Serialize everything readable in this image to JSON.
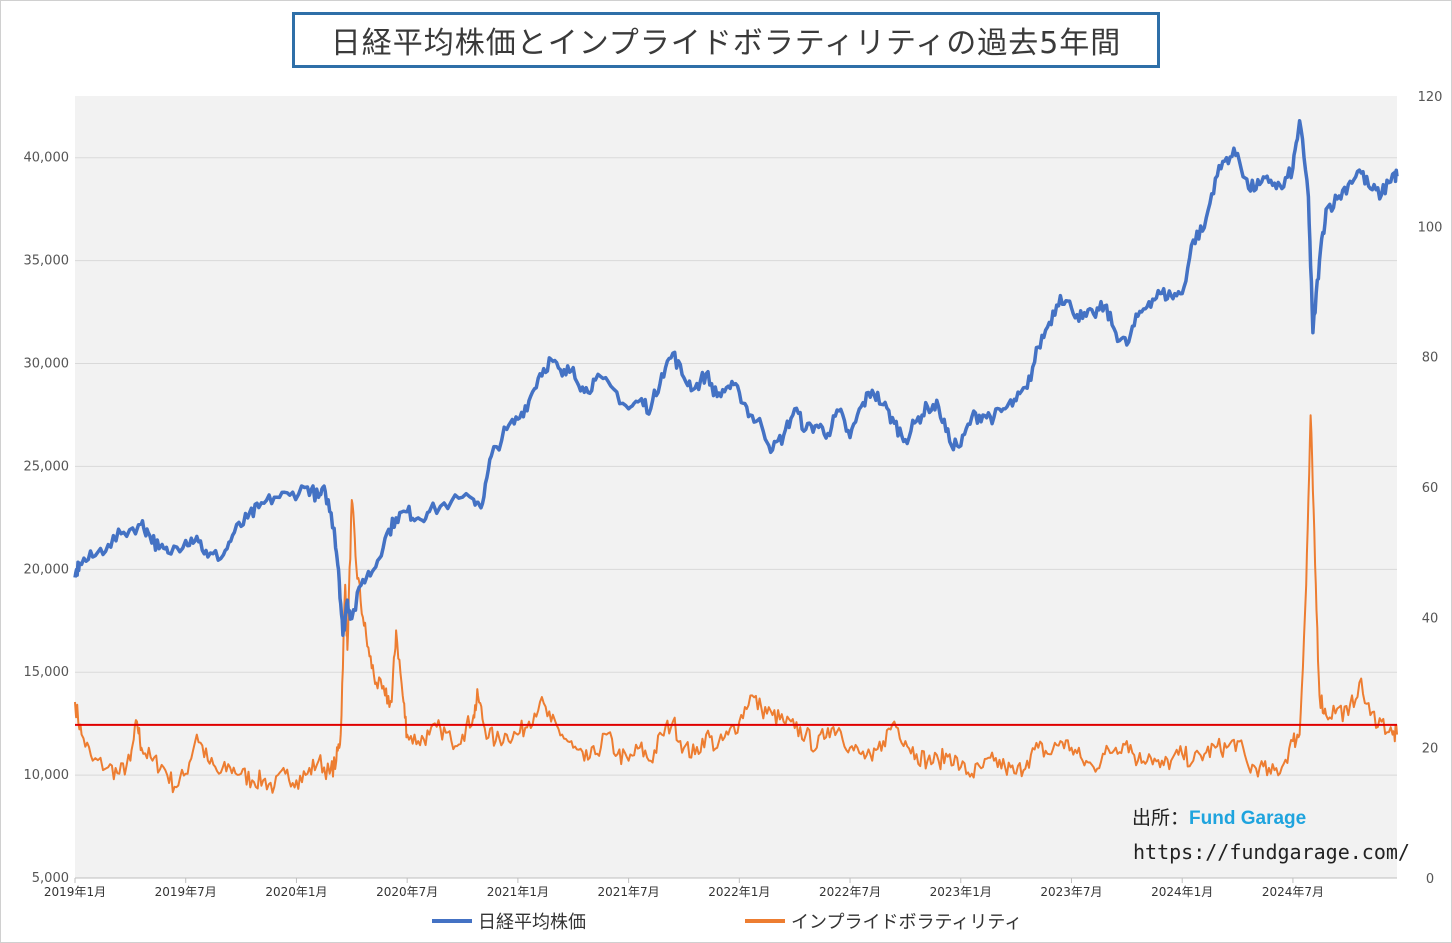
{
  "title": "日経平均株価とインプライドボラティリティの過去5年間",
  "source": {
    "label": "出所：",
    "name": "Fund Garage",
    "url": "https://fundgarage.com/"
  },
  "colors": {
    "nikkei": "#4472c4",
    "iv": "#ed7d31",
    "threshold": "#e00000",
    "plot_bg": "#f2f2f2",
    "grid": "#d9d9d9"
  },
  "chart_data": {
    "type": "line",
    "title": "日経平均株価とインプライドボラティリティの過去5年間",
    "x_tick_labels": [
      "2019年1月",
      "2019年7月",
      "2020年1月",
      "2020年7月",
      "2021年1月",
      "2021年7月",
      "2022年1月",
      "2022年7月",
      "2023年1月",
      "2023年7月",
      "2024年1月",
      "2024年7月"
    ],
    "x_range": [
      2019.0,
      2024.97
    ],
    "y_left": {
      "min": 5000,
      "max": 43000,
      "ticks": [
        "5,000",
        "10,000",
        "15,000",
        "20,000",
        "25,000",
        "30,000",
        "35,000",
        "40,000"
      ]
    },
    "y_right": {
      "min": 0,
      "max": 120,
      "ticks": [
        "0",
        "20",
        "40",
        "60",
        "80",
        "100",
        "120"
      ]
    },
    "threshold_line": {
      "axis": "right",
      "value": 23.5
    },
    "series": [
      {
        "name": "日経平均株価",
        "axis": "left",
        "points": [
          [
            2019.0,
            19600
          ],
          [
            2019.02,
            20300
          ],
          [
            2019.08,
            20600
          ],
          [
            2019.15,
            21200
          ],
          [
            2019.22,
            21800
          ],
          [
            2019.3,
            22200
          ],
          [
            2019.33,
            21800
          ],
          [
            2019.38,
            21000
          ],
          [
            2019.42,
            20800
          ],
          [
            2019.5,
            21400
          ],
          [
            2019.55,
            21600
          ],
          [
            2019.6,
            20600
          ],
          [
            2019.67,
            20700
          ],
          [
            2019.72,
            21800
          ],
          [
            2019.78,
            22500
          ],
          [
            2019.83,
            23000
          ],
          [
            2019.9,
            23500
          ],
          [
            2019.97,
            23600
          ],
          [
            2020.05,
            24000
          ],
          [
            2020.1,
            23500
          ],
          [
            2020.13,
            23800
          ],
          [
            2020.17,
            22000
          ],
          [
            2020.19,
            20000
          ],
          [
            2020.21,
            16800
          ],
          [
            2020.23,
            18500
          ],
          [
            2020.25,
            17600
          ],
          [
            2020.3,
            19500
          ],
          [
            2020.35,
            20000
          ],
          [
            2020.4,
            21500
          ],
          [
            2020.45,
            22500
          ],
          [
            2020.5,
            22800
          ],
          [
            2020.55,
            22500
          ],
          [
            2020.6,
            22800
          ],
          [
            2020.7,
            23300
          ],
          [
            2020.8,
            23400
          ],
          [
            2020.84,
            23200
          ],
          [
            2020.88,
            25500
          ],
          [
            2020.95,
            26800
          ],
          [
            2021.0,
            27300
          ],
          [
            2021.05,
            28200
          ],
          [
            2021.1,
            29500
          ],
          [
            2021.15,
            30200
          ],
          [
            2021.2,
            29400
          ],
          [
            2021.25,
            29800
          ],
          [
            2021.3,
            28600
          ],
          [
            2021.35,
            29200
          ],
          [
            2021.42,
            28900
          ],
          [
            2021.5,
            27800
          ],
          [
            2021.55,
            28200
          ],
          [
            2021.6,
            27800
          ],
          [
            2021.65,
            29500
          ],
          [
            2021.7,
            30500
          ],
          [
            2021.75,
            29300
          ],
          [
            2021.8,
            28800
          ],
          [
            2021.85,
            29500
          ],
          [
            2021.9,
            28400
          ],
          [
            2021.95,
            28900
          ],
          [
            2022.0,
            28600
          ],
          [
            2022.05,
            27500
          ],
          [
            2022.1,
            27000
          ],
          [
            2022.15,
            25800
          ],
          [
            2022.2,
            26500
          ],
          [
            2022.25,
            27800
          ],
          [
            2022.3,
            26800
          ],
          [
            2022.35,
            27000
          ],
          [
            2022.4,
            26600
          ],
          [
            2022.45,
            27700
          ],
          [
            2022.5,
            26400
          ],
          [
            2022.55,
            27900
          ],
          [
            2022.6,
            28700
          ],
          [
            2022.65,
            28000
          ],
          [
            2022.7,
            27100
          ],
          [
            2022.75,
            26300
          ],
          [
            2022.8,
            27200
          ],
          [
            2022.85,
            27900
          ],
          [
            2022.9,
            27900
          ],
          [
            2022.95,
            26200
          ],
          [
            2023.0,
            26000
          ],
          [
            2023.05,
            27400
          ],
          [
            2023.1,
            27500
          ],
          [
            2023.15,
            27400
          ],
          [
            2023.2,
            27800
          ],
          [
            2023.25,
            28200
          ],
          [
            2023.3,
            28800
          ],
          [
            2023.35,
            30800
          ],
          [
            2023.4,
            32000
          ],
          [
            2023.45,
            33300
          ],
          [
            2023.5,
            32700
          ],
          [
            2023.55,
            32200
          ],
          [
            2023.6,
            32400
          ],
          [
            2023.65,
            32800
          ],
          [
            2023.7,
            31500
          ],
          [
            2023.75,
            30900
          ],
          [
            2023.8,
            32300
          ],
          [
            2023.85,
            33000
          ],
          [
            2023.9,
            33400
          ],
          [
            2023.95,
            33300
          ],
          [
            2024.0,
            33400
          ],
          [
            2024.05,
            36000
          ],
          [
            2024.1,
            36600
          ],
          [
            2024.15,
            39000
          ],
          [
            2024.2,
            40000
          ],
          [
            2024.25,
            40200
          ],
          [
            2024.3,
            38500
          ],
          [
            2024.35,
            38700
          ],
          [
            2024.4,
            38900
          ],
          [
            2024.45,
            38500
          ],
          [
            2024.5,
            39500
          ],
          [
            2024.53,
            41800
          ],
          [
            2024.57,
            38100
          ],
          [
            2024.59,
            31500
          ],
          [
            2024.62,
            35000
          ],
          [
            2024.65,
            37500
          ],
          [
            2024.7,
            38000
          ],
          [
            2024.75,
            38700
          ],
          [
            2024.8,
            39400
          ],
          [
            2024.85,
            38500
          ],
          [
            2024.9,
            38200
          ],
          [
            2024.95,
            39200
          ],
          [
            2024.97,
            39100
          ]
        ]
      },
      {
        "name": "インプライドボラティリティ",
        "axis": "right",
        "points": [
          [
            2019.0,
            27
          ],
          [
            2019.03,
            22
          ],
          [
            2019.08,
            18
          ],
          [
            2019.15,
            17
          ],
          [
            2019.2,
            16
          ],
          [
            2019.25,
            18
          ],
          [
            2019.28,
            24
          ],
          [
            2019.3,
            20
          ],
          [
            2019.35,
            18
          ],
          [
            2019.4,
            17
          ],
          [
            2019.45,
            14
          ],
          [
            2019.5,
            16
          ],
          [
            2019.55,
            22
          ],
          [
            2019.6,
            18
          ],
          [
            2019.65,
            16
          ],
          [
            2019.7,
            17
          ],
          [
            2019.75,
            16
          ],
          [
            2019.8,
            15
          ],
          [
            2019.85,
            15
          ],
          [
            2019.9,
            14
          ],
          [
            2019.95,
            16
          ],
          [
            2020.0,
            15
          ],
          [
            2020.05,
            16
          ],
          [
            2020.1,
            18
          ],
          [
            2020.15,
            16
          ],
          [
            2020.18,
            18
          ],
          [
            2020.2,
            22
          ],
          [
            2020.22,
            45
          ],
          [
            2020.23,
            35
          ],
          [
            2020.25,
            58
          ],
          [
            2020.27,
            48
          ],
          [
            2020.3,
            40
          ],
          [
            2020.33,
            34
          ],
          [
            2020.36,
            30
          ],
          [
            2020.4,
            28
          ],
          [
            2020.43,
            27
          ],
          [
            2020.45,
            38
          ],
          [
            2020.48,
            28
          ],
          [
            2020.5,
            22
          ],
          [
            2020.55,
            21
          ],
          [
            2020.6,
            22
          ],
          [
            2020.65,
            23
          ],
          [
            2020.7,
            21
          ],
          [
            2020.75,
            22
          ],
          [
            2020.8,
            25
          ],
          [
            2020.82,
            28
          ],
          [
            2020.85,
            23
          ],
          [
            2020.9,
            21
          ],
          [
            2020.95,
            22
          ],
          [
            2021.0,
            22
          ],
          [
            2021.05,
            24
          ],
          [
            2021.1,
            27
          ],
          [
            2021.15,
            24
          ],
          [
            2021.2,
            22
          ],
          [
            2021.25,
            20
          ],
          [
            2021.3,
            18
          ],
          [
            2021.35,
            19
          ],
          [
            2021.4,
            22
          ],
          [
            2021.45,
            19
          ],
          [
            2021.5,
            18
          ],
          [
            2021.55,
            20
          ],
          [
            2021.6,
            18
          ],
          [
            2021.65,
            22
          ],
          [
            2021.7,
            24
          ],
          [
            2021.75,
            20
          ],
          [
            2021.8,
            19
          ],
          [
            2021.85,
            22
          ],
          [
            2021.9,
            20
          ],
          [
            2021.95,
            22
          ],
          [
            2022.0,
            24
          ],
          [
            2022.05,
            28
          ],
          [
            2022.1,
            26
          ],
          [
            2022.15,
            25
          ],
          [
            2022.2,
            24
          ],
          [
            2022.25,
            23
          ],
          [
            2022.3,
            22
          ],
          [
            2022.35,
            20
          ],
          [
            2022.4,
            23
          ],
          [
            2022.45,
            23
          ],
          [
            2022.5,
            20
          ],
          [
            2022.55,
            19
          ],
          [
            2022.6,
            18
          ],
          [
            2022.65,
            21
          ],
          [
            2022.7,
            24
          ],
          [
            2022.75,
            21
          ],
          [
            2022.8,
            19
          ],
          [
            2022.85,
            18
          ],
          [
            2022.9,
            18
          ],
          [
            2022.95,
            19
          ],
          [
            2023.0,
            17
          ],
          [
            2023.05,
            16
          ],
          [
            2023.1,
            17
          ],
          [
            2023.15,
            18
          ],
          [
            2023.2,
            17
          ],
          [
            2023.25,
            16
          ],
          [
            2023.3,
            18
          ],
          [
            2023.35,
            20
          ],
          [
            2023.4,
            19
          ],
          [
            2023.45,
            21
          ],
          [
            2023.5,
            20
          ],
          [
            2023.55,
            18
          ],
          [
            2023.6,
            17
          ],
          [
            2023.65,
            19
          ],
          [
            2023.7,
            20
          ],
          [
            2023.75,
            21
          ],
          [
            2023.8,
            18
          ],
          [
            2023.85,
            19
          ],
          [
            2023.9,
            17
          ],
          [
            2023.95,
            18
          ],
          [
            2024.0,
            19
          ],
          [
            2024.05,
            18
          ],
          [
            2024.1,
            19
          ],
          [
            2024.15,
            20
          ],
          [
            2024.2,
            20
          ],
          [
            2024.25,
            21
          ],
          [
            2024.3,
            17
          ],
          [
            2024.35,
            17
          ],
          [
            2024.4,
            16
          ],
          [
            2024.45,
            17
          ],
          [
            2024.5,
            21
          ],
          [
            2024.53,
            22
          ],
          [
            2024.56,
            45
          ],
          [
            2024.58,
            71
          ],
          [
            2024.6,
            48
          ],
          [
            2024.62,
            28
          ],
          [
            2024.65,
            25
          ],
          [
            2024.7,
            26
          ],
          [
            2024.75,
            25
          ],
          [
            2024.8,
            30
          ],
          [
            2024.85,
            25
          ],
          [
            2024.9,
            24
          ],
          [
            2024.95,
            22
          ],
          [
            2024.97,
            22
          ]
        ]
      }
    ],
    "legend": [
      "日経平均株価",
      "インプライドボラティリティ"
    ]
  }
}
